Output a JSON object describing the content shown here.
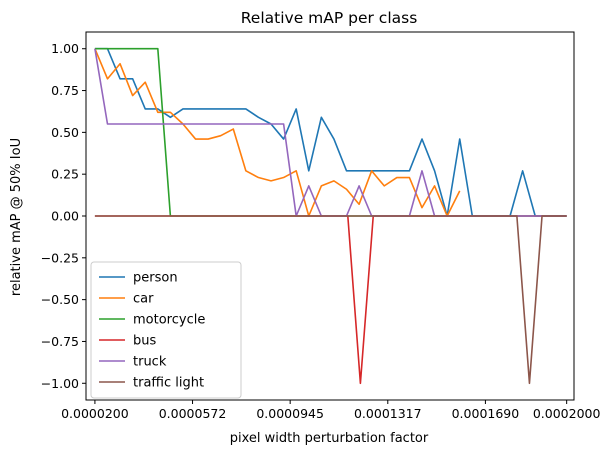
{
  "chart_data": {
    "type": "line",
    "title": "Relative mAP per class",
    "xlabel": "pixel width perturbation factor",
    "ylabel": "relative mAP @ 50% IoU",
    "xticks": [
      "0.0000200",
      "0.0000572",
      "0.0000945",
      "0.0001317",
      "0.0001690",
      "0.0002000"
    ],
    "yticks": [
      "1.00",
      "0.75",
      "0.50",
      "0.25",
      "0.00",
      "−0.25",
      "−0.50",
      "−0.75",
      "−1.00"
    ],
    "xlim": [
      1.66e-05,
      0.0002028
    ],
    "ylim": [
      -1.1,
      1.1
    ],
    "grid": false,
    "legend_position": "lower-left",
    "x": [
      2e-05,
      2.24e-05,
      2.48e-05,
      2.72e-05,
      2.96e-05,
      3.2e-05,
      3.44e-05,
      3.68e-05,
      3.92e-05,
      4.16e-05,
      4.4e-05,
      4.64e-05,
      4.88e-05,
      5.12e-05,
      5.36e-05,
      5.6e-05,
      5.84e-05,
      6.08e-05,
      6.32e-05,
      6.56e-05,
      6.8e-05,
      7.04e-05,
      7.28e-05,
      7.52e-05,
      7.76e-05,
      8e-05,
      8.24e-05,
      8.48e-05,
      8.72e-05,
      8.96e-05,
      9.2e-05,
      9.44e-05,
      9.68e-05,
      9.92e-05,
      0.0001016,
      0.000104,
      0.0001064,
      0.0001088,
      0.0001112,
      0.0001136,
      0.000116,
      0.0001184,
      0.0001208,
      0.0001232,
      0.0001256,
      0.000128,
      0.0001304,
      0.0001328,
      0.0001352,
      0.0001376,
      0.00014,
      0.0001424,
      0.0001448,
      0.0001472,
      0.0001496,
      0.000152,
      0.0001544,
      0.0001568,
      0.0001592,
      0.0001616,
      0.000164,
      0.0001664,
      0.0001688,
      0.0001712,
      0.0001736,
      0.000176,
      0.0001784,
      0.0001808,
      0.0001832,
      0.0001856,
      0.000188,
      0.0001904,
      0.0001928,
      0.0001952,
      0.0001976,
      0.0002
    ],
    "series": [
      {
        "name": "person",
        "color": "#1f77b4",
        "points": [
          [
            2e-05,
            1.0
          ],
          [
            2.24e-05,
            1.0
          ],
          [
            2.48e-05,
            1.0
          ],
          [
            2.96e-05,
            0.82
          ],
          [
            3.44e-05,
            0.82
          ],
          [
            3.92e-05,
            0.64
          ],
          [
            4.4e-05,
            0.64
          ],
          [
            4.88e-05,
            0.59
          ],
          [
            5.36e-05,
            0.64
          ],
          [
            5.84e-05,
            0.64
          ],
          [
            6.32e-05,
            0.64
          ],
          [
            6.8e-05,
            0.64
          ],
          [
            7.28e-05,
            0.64
          ],
          [
            7.76e-05,
            0.64
          ],
          [
            8.24e-05,
            0.59
          ],
          [
            8.72e-05,
            0.55
          ],
          [
            9.2e-05,
            0.46
          ],
          [
            9.68e-05,
            0.64
          ],
          [
            0.0001016,
            0.27
          ],
          [
            0.0001064,
            0.59
          ],
          [
            0.0001112,
            0.46
          ],
          [
            0.000116,
            0.27
          ],
          [
            0.0001208,
            0.27
          ],
          [
            0.0001256,
            0.27
          ],
          [
            0.0001304,
            0.27
          ],
          [
            0.0001352,
            0.27
          ],
          [
            0.00014,
            0.27
          ],
          [
            0.0001448,
            0.46
          ],
          [
            0.0001496,
            0.27
          ],
          [
            0.0001544,
            0.0
          ],
          [
            0.0001592,
            0.46
          ],
          [
            0.000164,
            0.0
          ],
          [
            0.0001688,
            0.0
          ],
          [
            0.0001736,
            0.0
          ],
          [
            0.0001784,
            0.0
          ],
          [
            0.0001832,
            0.27
          ],
          [
            0.000188,
            0.0
          ],
          [
            0.0001928,
            0.0
          ],
          [
            0.0001976,
            0.0
          ],
          [
            0.0002,
            0.0
          ]
        ]
      },
      {
        "name": "car",
        "color": "#ff7f0e",
        "points": [
          [
            2e-05,
            1.0
          ],
          [
            2.48e-05,
            0.82
          ],
          [
            2.96e-05,
            0.91
          ],
          [
            3.44e-05,
            0.72
          ],
          [
            3.92e-05,
            0.8
          ],
          [
            4.4e-05,
            0.62
          ],
          [
            4.88e-05,
            0.62
          ],
          [
            5.36e-05,
            0.55
          ],
          [
            5.84e-05,
            0.46
          ],
          [
            6.32e-05,
            0.46
          ],
          [
            6.8e-05,
            0.48
          ],
          [
            7.28e-05,
            0.52
          ],
          [
            7.76e-05,
            0.27
          ],
          [
            8.24e-05,
            0.23
          ],
          [
            8.72e-05,
            0.21
          ],
          [
            9.2e-05,
            0.23
          ],
          [
            9.68e-05,
            0.27
          ],
          [
            0.0001016,
            0.0
          ],
          [
            0.0001064,
            0.18
          ],
          [
            0.0001112,
            0.21
          ],
          [
            0.000116,
            0.16
          ],
          [
            0.0001208,
            0.07
          ],
          [
            0.0001256,
            0.27
          ],
          [
            0.0001304,
            0.18
          ],
          [
            0.0001352,
            0.23
          ],
          [
            0.00014,
            0.23
          ],
          [
            0.0001448,
            0.05
          ],
          [
            0.0001496,
            0.18
          ],
          [
            0.0001544,
            0.0
          ],
          [
            0.0001592,
            0.15
          ]
        ]
      },
      {
        "name": "motorcycle",
        "color": "#2ca02c",
        "points": [
          [
            2e-05,
            1.0
          ],
          [
            4.4e-05,
            1.0
          ],
          [
            4.88e-05,
            0.0
          ],
          [
            0.0002,
            0.0
          ]
        ]
      },
      {
        "name": "bus",
        "color": "#d62728",
        "points": [
          [
            2e-05,
            0.0
          ],
          [
            0.0001165,
            0.0
          ],
          [
            0.0001213,
            -1.0
          ],
          [
            0.0001262,
            0.0
          ],
          [
            0.0002,
            0.0
          ]
        ]
      },
      {
        "name": "truck",
        "color": "#9467bd",
        "points": [
          [
            2e-05,
            1.0
          ],
          [
            2.48e-05,
            0.55
          ],
          [
            2.96e-05,
            0.55
          ],
          [
            9.2e-05,
            0.55
          ],
          [
            9.68e-05,
            0.0
          ],
          [
            0.0001016,
            0.18
          ],
          [
            0.0001064,
            0.0
          ],
          [
            0.0001112,
            0.0
          ],
          [
            0.000116,
            0.0
          ],
          [
            0.0001208,
            0.18
          ],
          [
            0.0001256,
            0.0
          ],
          [
            0.0001304,
            0.0
          ],
          [
            0.0001352,
            0.0
          ],
          [
            0.00014,
            0.0
          ],
          [
            0.0001448,
            0.27
          ],
          [
            0.0001496,
            0.0
          ],
          [
            0.0001544,
            0.0
          ],
          [
            0.0002,
            0.0
          ]
        ]
      },
      {
        "name": "traffic light",
        "color": "#8c564b",
        "points": [
          [
            2e-05,
            0.0
          ],
          [
            0.000181,
            0.0
          ],
          [
            0.0001858,
            -1.0
          ],
          [
            0.0001906,
            0.0
          ],
          [
            0.0002,
            0.0
          ]
        ]
      }
    ]
  }
}
